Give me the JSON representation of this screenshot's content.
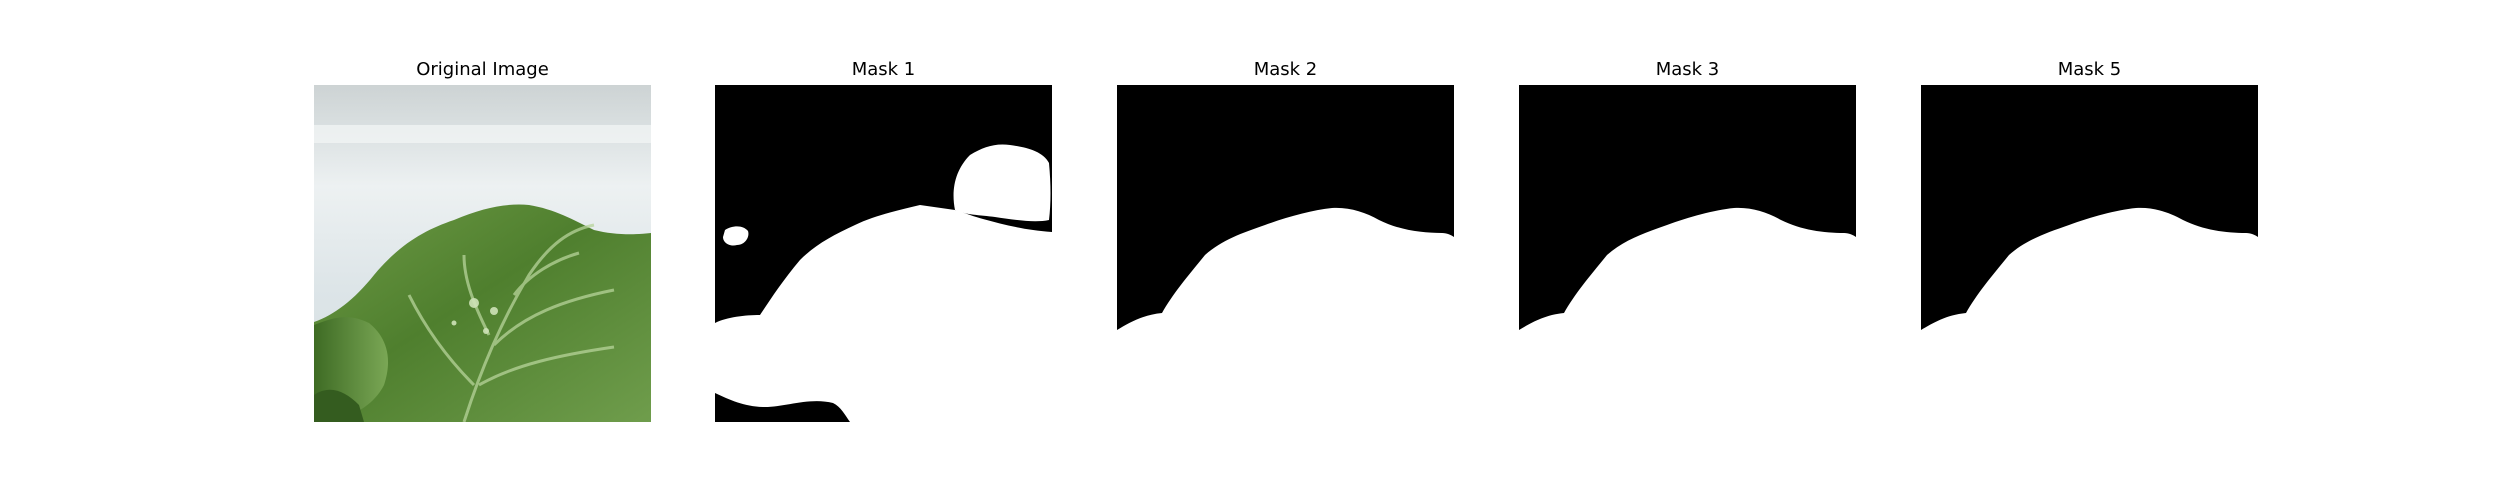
{
  "figure": {
    "panels": [
      {
        "title": "Original Image"
      },
      {
        "title": "Mask 1"
      },
      {
        "title": "Mask 2"
      },
      {
        "title": "Mask 3"
      },
      {
        "title": "Mask 5"
      }
    ]
  },
  "colors": {
    "mask_background": "#000000",
    "mask_foreground": "#ffffff",
    "leaf_dark": "#3f6a26",
    "leaf_mid": "#5f8f3a",
    "leaf_light": "#8db565",
    "backdrop": "#e4eaec"
  }
}
